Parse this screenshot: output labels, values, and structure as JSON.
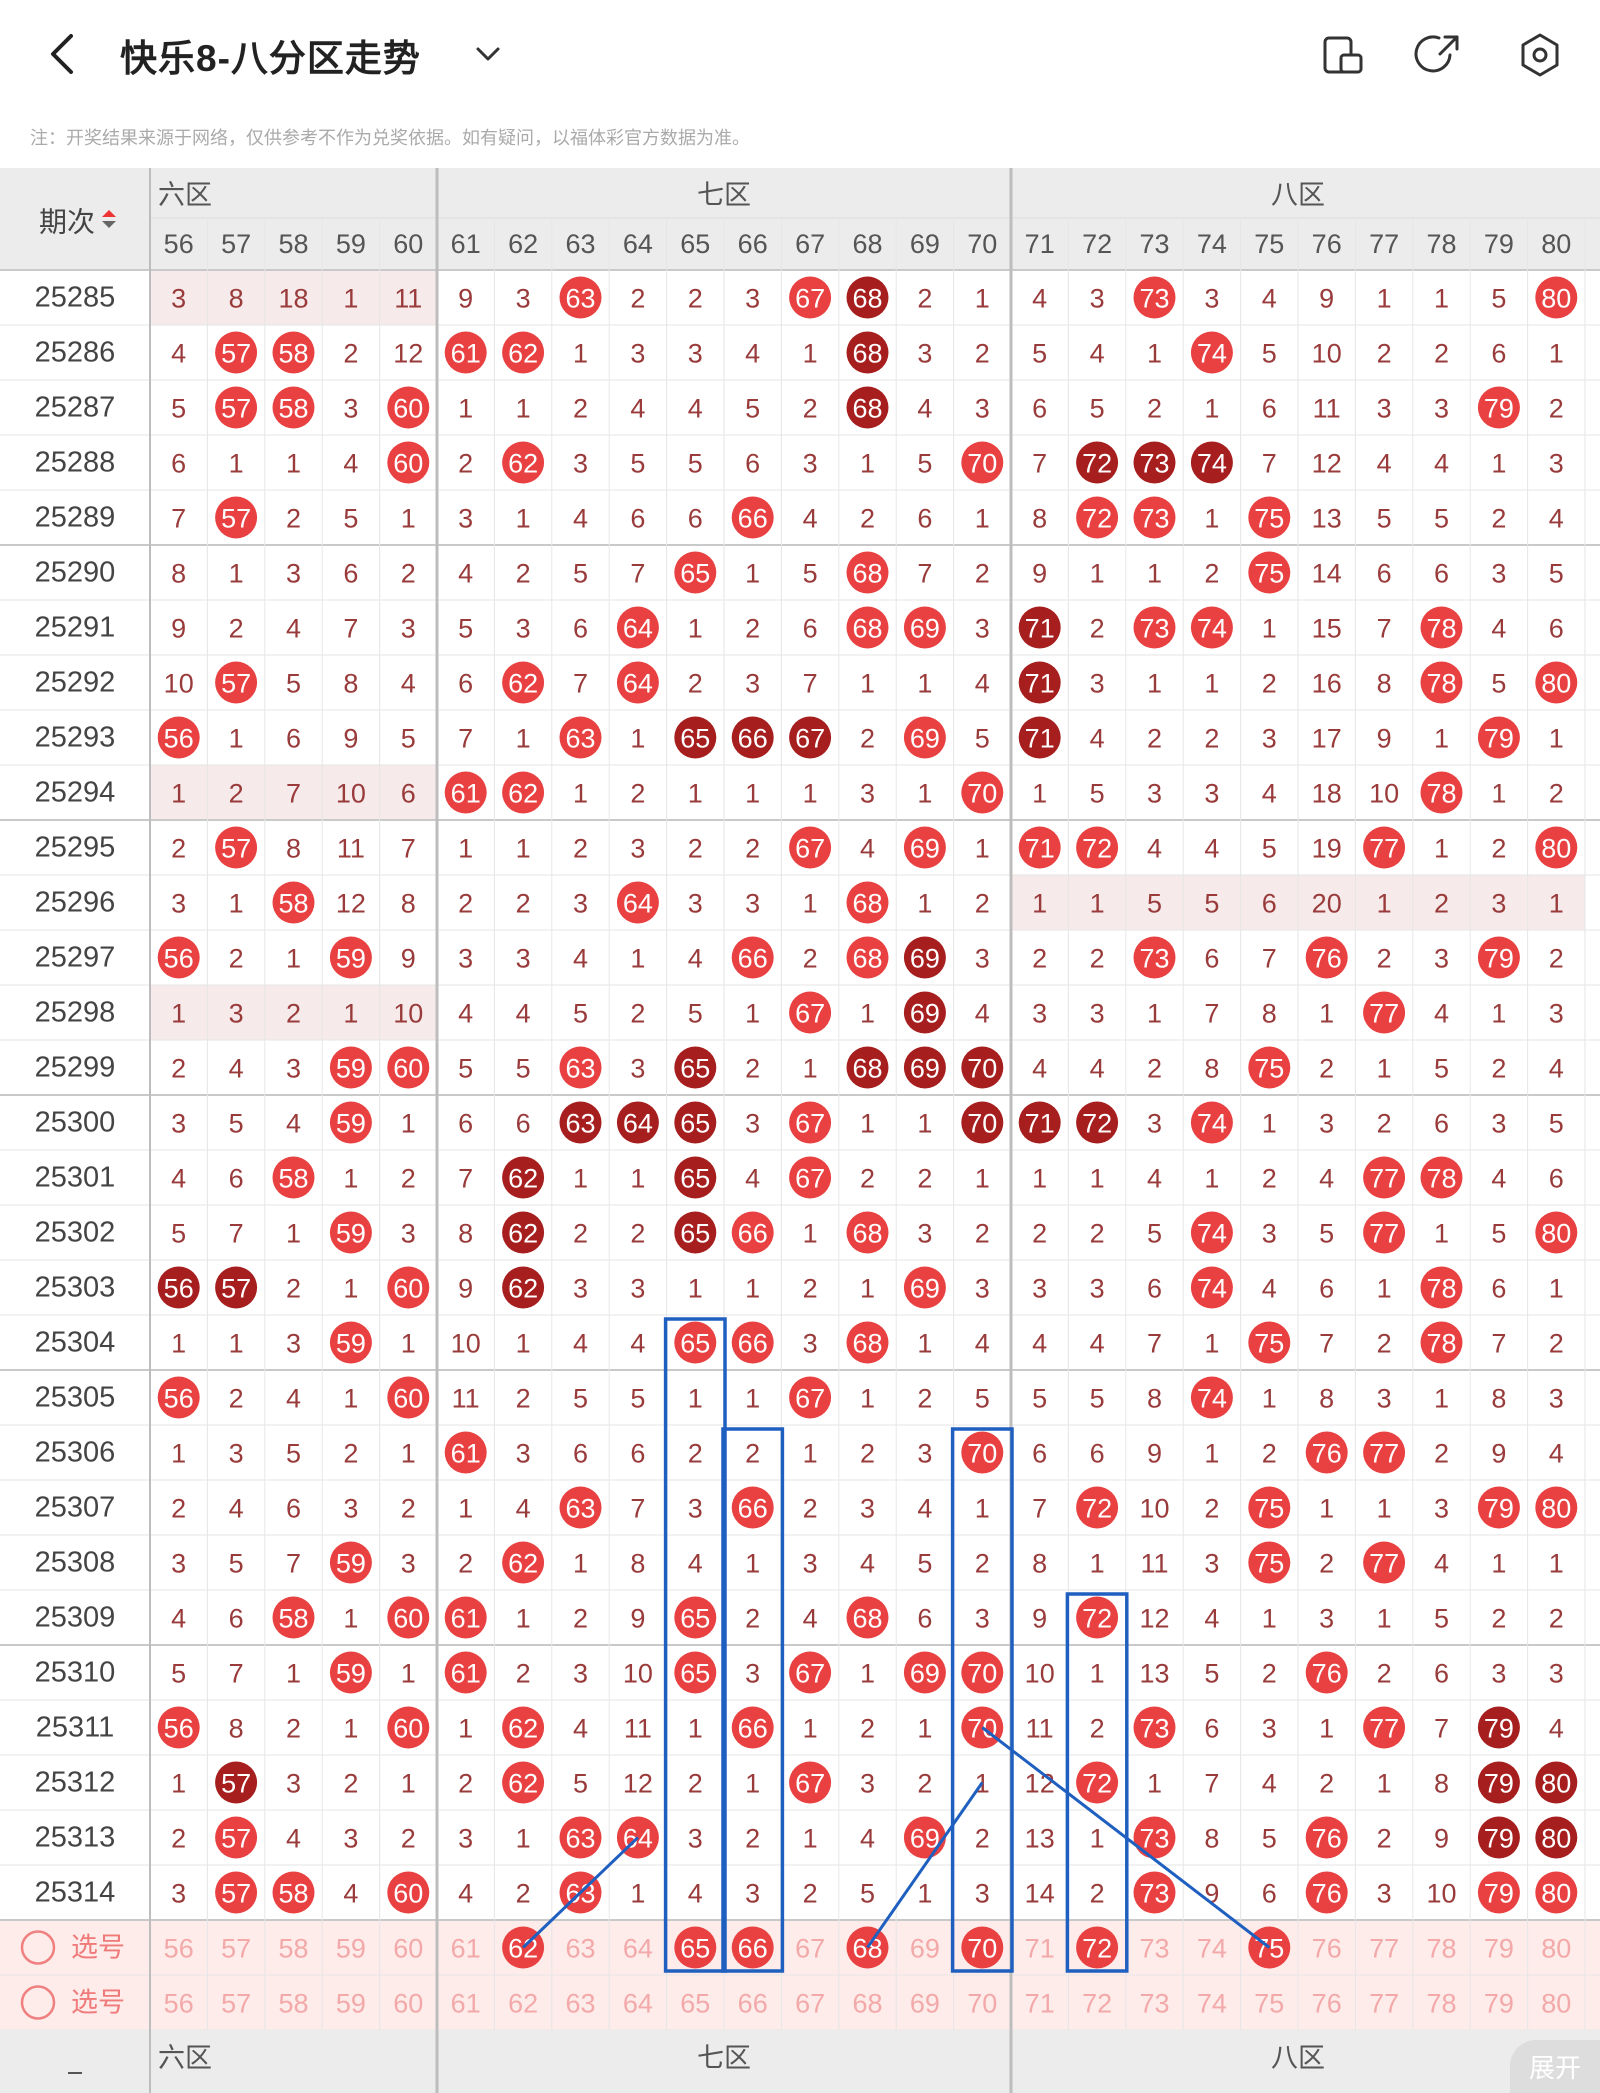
{
  "header": {
    "title": "快乐8-八分区走势",
    "back_icon": "chevron-left-icon",
    "dropdown_icon": "chevron-down-icon",
    "icons": [
      "layout-toggle-icon",
      "share-icon",
      "settings-icon"
    ]
  },
  "notice": "注：开奖结果来源于网络，仅供参考不作为兑奖依据。如有疑问，以福体彩官方数据为准。",
  "table": {
    "period_header": "期次",
    "zone_labels": {
      "six": "六区",
      "seven": "七区",
      "eight": "八区"
    },
    "columns": [
      "56",
      "57",
      "58",
      "59",
      "60",
      "61",
      "62",
      "63",
      "64",
      "65",
      "66",
      "67",
      "68",
      "69",
      "70",
      "71",
      "72",
      "73",
      "74",
      "75",
      "76",
      "77",
      "78",
      "79",
      "80"
    ],
    "rows": [
      {
        "p": "25285",
        "v": [
          "3",
          "8",
          "18",
          "1",
          "11",
          "9",
          "3",
          "63",
          "2",
          "2",
          "3",
          "67",
          "68",
          "2",
          "1",
          "4",
          "3",
          "73",
          "3",
          "4",
          "9",
          "1",
          "1",
          "5",
          "80"
        ]
      },
      {
        "p": "25286",
        "v": [
          "4",
          "57",
          "58",
          "2",
          "12",
          "61",
          "62",
          "1",
          "3",
          "3",
          "4",
          "1",
          "68",
          "3",
          "2",
          "5",
          "4",
          "1",
          "74",
          "5",
          "10",
          "2",
          "2",
          "6",
          "1"
        ]
      },
      {
        "p": "25287",
        "v": [
          "5",
          "57",
          "58",
          "3",
          "60",
          "1",
          "1",
          "2",
          "4",
          "4",
          "5",
          "2",
          "68",
          "4",
          "3",
          "6",
          "5",
          "2",
          "1",
          "6",
          "11",
          "3",
          "3",
          "79",
          "2"
        ]
      },
      {
        "p": "25288",
        "v": [
          "6",
          "1",
          "1",
          "4",
          "60",
          "2",
          "62",
          "3",
          "5",
          "5",
          "6",
          "3",
          "1",
          "5",
          "70",
          "7",
          "72",
          "73",
          "74",
          "7",
          "12",
          "4",
          "4",
          "1",
          "3"
        ]
      },
      {
        "p": "25289",
        "v": [
          "7",
          "57",
          "2",
          "5",
          "1",
          "3",
          "1",
          "4",
          "6",
          "6",
          "66",
          "4",
          "2",
          "6",
          "1",
          "8",
          "72",
          "73",
          "1",
          "75",
          "13",
          "5",
          "5",
          "2",
          "4"
        ]
      },
      {
        "p": "25290",
        "v": [
          "8",
          "1",
          "3",
          "6",
          "2",
          "4",
          "2",
          "5",
          "7",
          "65",
          "1",
          "5",
          "68",
          "7",
          "2",
          "9",
          "1",
          "1",
          "2",
          "75",
          "14",
          "6",
          "6",
          "3",
          "5"
        ]
      },
      {
        "p": "25291",
        "v": [
          "9",
          "2",
          "4",
          "7",
          "3",
          "5",
          "3",
          "6",
          "64",
          "1",
          "2",
          "6",
          "68",
          "69",
          "3",
          "71",
          "2",
          "73",
          "74",
          "1",
          "15",
          "7",
          "78",
          "4",
          "6"
        ]
      },
      {
        "p": "25292",
        "v": [
          "10",
          "57",
          "5",
          "8",
          "4",
          "6",
          "62",
          "7",
          "64",
          "2",
          "3",
          "7",
          "1",
          "1",
          "4",
          "71",
          "3",
          "1",
          "1",
          "2",
          "16",
          "8",
          "78",
          "5",
          "80"
        ]
      },
      {
        "p": "25293",
        "v": [
          "56",
          "1",
          "6",
          "9",
          "5",
          "7",
          "1",
          "63",
          "1",
          "65",
          "66",
          "67",
          "2",
          "69",
          "5",
          "71",
          "4",
          "2",
          "2",
          "3",
          "17",
          "9",
          "1",
          "79",
          "1"
        ]
      },
      {
        "p": "25294",
        "v": [
          "1",
          "2",
          "7",
          "10",
          "6",
          "61",
          "62",
          "1",
          "2",
          "1",
          "1",
          "1",
          "3",
          "1",
          "70",
          "1",
          "5",
          "3",
          "3",
          "4",
          "18",
          "10",
          "78",
          "1",
          "2"
        ]
      },
      {
        "p": "25295",
        "v": [
          "2",
          "57",
          "8",
          "11",
          "7",
          "1",
          "1",
          "2",
          "3",
          "2",
          "2",
          "67",
          "4",
          "69",
          "1",
          "71",
          "72",
          "4",
          "4",
          "5",
          "19",
          "77",
          "1",
          "2",
          "80"
        ]
      },
      {
        "p": "25296",
        "v": [
          "3",
          "1",
          "58",
          "12",
          "8",
          "2",
          "2",
          "3",
          "64",
          "3",
          "3",
          "1",
          "68",
          "1",
          "2",
          "1",
          "1",
          "5",
          "5",
          "6",
          "20",
          "1",
          "2",
          "3",
          "1"
        ]
      },
      {
        "p": "25297",
        "v": [
          "56",
          "2",
          "1",
          "59",
          "9",
          "3",
          "3",
          "4",
          "1",
          "4",
          "66",
          "2",
          "68",
          "69",
          "3",
          "2",
          "2",
          "73",
          "6",
          "7",
          "76",
          "2",
          "3",
          "79",
          "2"
        ]
      },
      {
        "p": "25298",
        "v": [
          "1",
          "3",
          "2",
          "1",
          "10",
          "4",
          "4",
          "5",
          "2",
          "5",
          "1",
          "67",
          "1",
          "69",
          "4",
          "3",
          "3",
          "1",
          "7",
          "8",
          "1",
          "77",
          "4",
          "1",
          "3"
        ]
      },
      {
        "p": "25299",
        "v": [
          "2",
          "4",
          "3",
          "59",
          "60",
          "5",
          "5",
          "63",
          "3",
          "65",
          "2",
          "1",
          "68",
          "69",
          "70",
          "4",
          "4",
          "2",
          "8",
          "75",
          "2",
          "1",
          "5",
          "2",
          "4"
        ]
      },
      {
        "p": "25300",
        "v": [
          "3",
          "5",
          "4",
          "59",
          "1",
          "6",
          "6",
          "63",
          "64",
          "65",
          "3",
          "67",
          "1",
          "1",
          "70",
          "71",
          "72",
          "3",
          "74",
          "1",
          "3",
          "2",
          "6",
          "3",
          "5"
        ]
      },
      {
        "p": "25301",
        "v": [
          "4",
          "6",
          "58",
          "1",
          "2",
          "7",
          "62",
          "1",
          "1",
          "65",
          "4",
          "67",
          "2",
          "2",
          "1",
          "1",
          "1",
          "4",
          "1",
          "2",
          "4",
          "77",
          "78",
          "4",
          "6"
        ]
      },
      {
        "p": "25302",
        "v": [
          "5",
          "7",
          "1",
          "59",
          "3",
          "8",
          "62",
          "2",
          "2",
          "65",
          "66",
          "1",
          "68",
          "3",
          "2",
          "2",
          "2",
          "5",
          "74",
          "3",
          "5",
          "77",
          "1",
          "5",
          "80"
        ]
      },
      {
        "p": "25303",
        "v": [
          "56",
          "57",
          "2",
          "1",
          "60",
          "9",
          "62",
          "3",
          "3",
          "1",
          "1",
          "2",
          "1",
          "69",
          "3",
          "3",
          "3",
          "6",
          "74",
          "4",
          "6",
          "1",
          "78",
          "6",
          "1"
        ]
      },
      {
        "p": "25304",
        "v": [
          "1",
          "1",
          "3",
          "59",
          "1",
          "10",
          "1",
          "4",
          "4",
          "65",
          "66",
          "3",
          "68",
          "1",
          "4",
          "4",
          "4",
          "7",
          "1",
          "75",
          "7",
          "2",
          "78",
          "7",
          "2"
        ]
      },
      {
        "p": "25305",
        "v": [
          "56",
          "2",
          "4",
          "1",
          "60",
          "11",
          "2",
          "5",
          "5",
          "1",
          "1",
          "67",
          "1",
          "2",
          "5",
          "5",
          "5",
          "8",
          "74",
          "1",
          "8",
          "3",
          "1",
          "8",
          "3"
        ]
      },
      {
        "p": "25306",
        "v": [
          "1",
          "3",
          "5",
          "2",
          "1",
          "61",
          "3",
          "6",
          "6",
          "2",
          "2",
          "1",
          "2",
          "3",
          "70",
          "6",
          "6",
          "9",
          "1",
          "2",
          "76",
          "77",
          "2",
          "9",
          "4"
        ]
      },
      {
        "p": "25307",
        "v": [
          "2",
          "4",
          "6",
          "3",
          "2",
          "1",
          "4",
          "63",
          "7",
          "3",
          "66",
          "2",
          "3",
          "4",
          "1",
          "7",
          "72",
          "10",
          "2",
          "75",
          "1",
          "1",
          "3",
          "79",
          "80"
        ]
      },
      {
        "p": "25308",
        "v": [
          "3",
          "5",
          "7",
          "59",
          "3",
          "2",
          "62",
          "1",
          "8",
          "4",
          "1",
          "3",
          "4",
          "5",
          "2",
          "8",
          "1",
          "11",
          "3",
          "75",
          "2",
          "77",
          "4",
          "1",
          "1"
        ]
      },
      {
        "p": "25309",
        "v": [
          "4",
          "6",
          "58",
          "1",
          "60",
          "61",
          "1",
          "2",
          "9",
          "65",
          "2",
          "4",
          "68",
          "6",
          "3",
          "9",
          "72",
          "12",
          "4",
          "1",
          "3",
          "1",
          "5",
          "2",
          "2"
        ]
      },
      {
        "p": "25310",
        "v": [
          "5",
          "7",
          "1",
          "59",
          "1",
          "61",
          "2",
          "3",
          "10",
          "65",
          "3",
          "67",
          "1",
          "69",
          "70",
          "10",
          "1",
          "13",
          "5",
          "2",
          "76",
          "2",
          "6",
          "3",
          "3"
        ]
      },
      {
        "p": "25311",
        "v": [
          "56",
          "8",
          "2",
          "1",
          "60",
          "1",
          "62",
          "4",
          "11",
          "1",
          "66",
          "1",
          "2",
          "1",
          "70",
          "11",
          "2",
          "73",
          "6",
          "3",
          "1",
          "77",
          "7",
          "79",
          "4"
        ]
      },
      {
        "p": "25312",
        "v": [
          "1",
          "57",
          "3",
          "2",
          "1",
          "2",
          "62",
          "5",
          "12",
          "2",
          "1",
          "67",
          "3",
          "2",
          "1",
          "12",
          "72",
          "1",
          "7",
          "4",
          "2",
          "1",
          "8",
          "79",
          "80"
        ]
      },
      {
        "p": "25313",
        "v": [
          "2",
          "57",
          "4",
          "3",
          "2",
          "3",
          "1",
          "63",
          "64",
          "3",
          "2",
          "1",
          "4",
          "69",
          "2",
          "13",
          "1",
          "73",
          "8",
          "5",
          "76",
          "2",
          "9",
          "79",
          "80"
        ]
      },
      {
        "p": "25314",
        "v": [
          "3",
          "57",
          "58",
          "4",
          "60",
          "4",
          "2",
          "63",
          "1",
          "4",
          "3",
          "2",
          "5",
          "1",
          "3",
          "14",
          "2",
          "73",
          "9",
          "6",
          "76",
          "3",
          "10",
          "79",
          "80"
        ]
      }
    ],
    "select_label": "选号",
    "expand_label": "展开"
  }
}
